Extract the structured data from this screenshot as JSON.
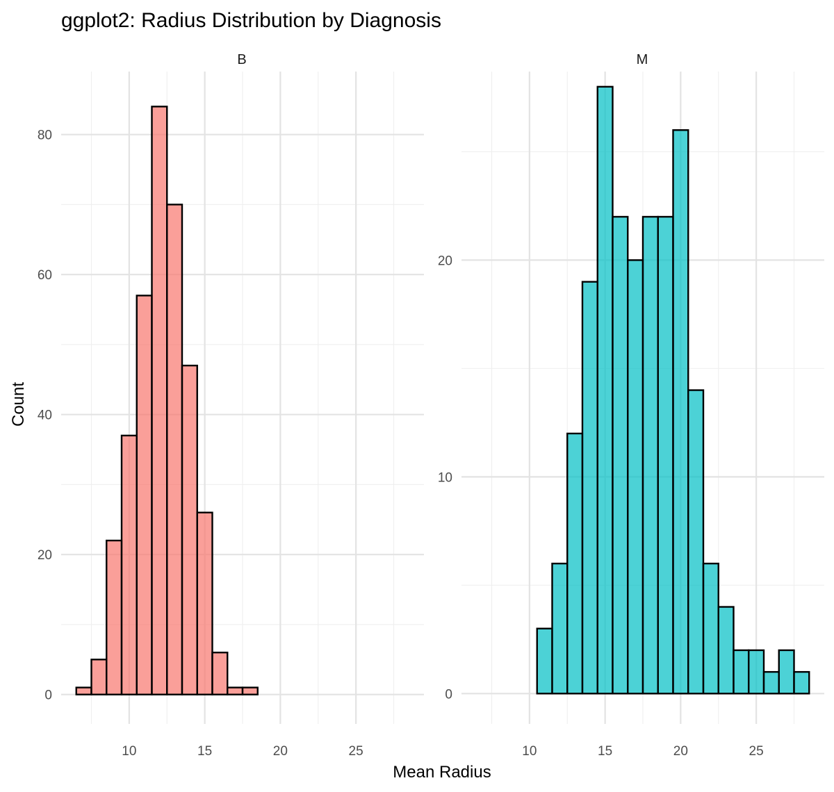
{
  "chart_data": {
    "type": "bar",
    "chart_kind": "faceted histogram",
    "title": "ggplot2: Radius Distribution by Diagnosis",
    "xlabel": "Mean Radius",
    "ylabel": "Count",
    "bin_width": 1,
    "bin_starts": [
      6.5,
      7.5,
      8.5,
      9.5,
      10.5,
      11.5,
      12.5,
      13.5,
      14.5,
      15.5,
      16.5,
      17.5,
      18.5,
      19.5,
      20.5,
      21.5,
      22.5,
      23.5,
      24.5,
      25.5,
      26.5,
      27.5
    ],
    "xlim": [
      5.5,
      29.5
    ],
    "x_ticks": [
      10,
      15,
      20,
      25
    ],
    "x_tick_labels": [
      "10",
      "15",
      "20",
      "25"
    ],
    "grid": true,
    "facet_scales": "free_y",
    "facets": [
      {
        "label": "B",
        "color": "#F8766D",
        "ylim": [
          -4.2,
          89
        ],
        "y_ticks": [
          0,
          20,
          40,
          60,
          80
        ],
        "y_tick_labels": [
          "0",
          "20",
          "40",
          "60",
          "80"
        ],
        "values": [
          1,
          5,
          22,
          37,
          57,
          84,
          70,
          47,
          26,
          6,
          1,
          1,
          0,
          0,
          0,
          0,
          0,
          0,
          0,
          0,
          0,
          0
        ]
      },
      {
        "label": "M",
        "color": "#00BFC4",
        "ylim": [
          -1.4,
          28.7
        ],
        "y_ticks": [
          0,
          10,
          20
        ],
        "y_tick_labels": [
          "0",
          "10",
          "20"
        ],
        "values": [
          0,
          0,
          0,
          0,
          3,
          6,
          12,
          19,
          28,
          22,
          20,
          22,
          22,
          26,
          14,
          6,
          4,
          2,
          2,
          1,
          2,
          1
        ]
      }
    ]
  }
}
